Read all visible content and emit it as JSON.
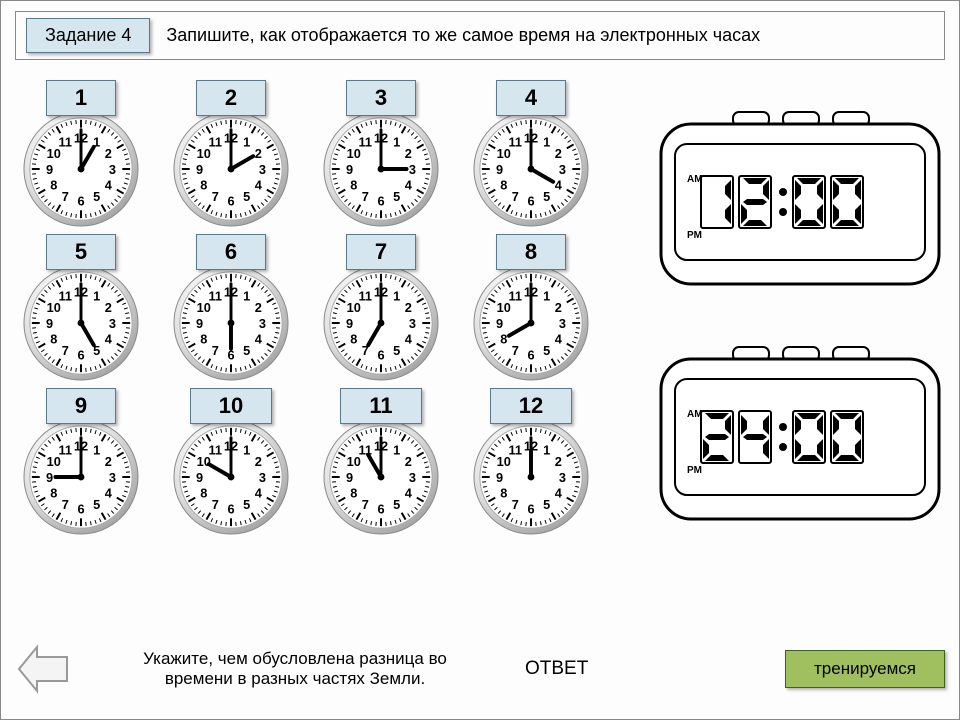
{
  "header": {
    "task_label": "Задание 4",
    "instruction": "Запишите, как отображается то же самое время на электронных часах"
  },
  "clocks": [
    {
      "label": "1",
      "hour": 1,
      "minute": 0
    },
    {
      "label": "2",
      "hour": 2,
      "minute": 0
    },
    {
      "label": "3",
      "hour": 3,
      "minute": 0
    },
    {
      "label": "4",
      "hour": 4,
      "minute": 0
    },
    {
      "label": "5",
      "hour": 5,
      "minute": 0
    },
    {
      "label": "6",
      "hour": 6,
      "minute": 0
    },
    {
      "label": "7",
      "hour": 7,
      "minute": 0
    },
    {
      "label": "8",
      "hour": 8,
      "minute": 0
    },
    {
      "label": "9",
      "hour": 9,
      "minute": 0
    },
    {
      "label": "10",
      "hour": 10,
      "minute": 0
    },
    {
      "label": "11",
      "hour": 11,
      "minute": 0
    },
    {
      "label": "12",
      "hour": 12,
      "minute": 0
    }
  ],
  "digital": [
    {
      "display": "12:00",
      "am_label": "AM",
      "pm_label": "PM"
    },
    {
      "display": "24:00",
      "am_label": "AM",
      "pm_label": "PM"
    }
  ],
  "footer": {
    "question2": "Укажите, чем обусловлена разница во времени в разных частях Земли.",
    "answer_label": "ОТВЕТ",
    "practice_label": "тренируемся"
  },
  "style": {
    "badge_bg": "#d6e6ef",
    "badge_border": "#5a7a8a",
    "practice_bg": "#a0c060",
    "practice_border": "#406020",
    "clock_face_fill": "#ffffff",
    "clock_rim_outer": "#bbbbbb",
    "clock_rim_inner": "#eeeeee",
    "hand_color": "#000000",
    "tick_color": "#000000",
    "digital_stroke": "#000000",
    "digital_bg": "#ffffff",
    "digit_color": "#000000",
    "font_family": "Arial, sans-serif"
  }
}
